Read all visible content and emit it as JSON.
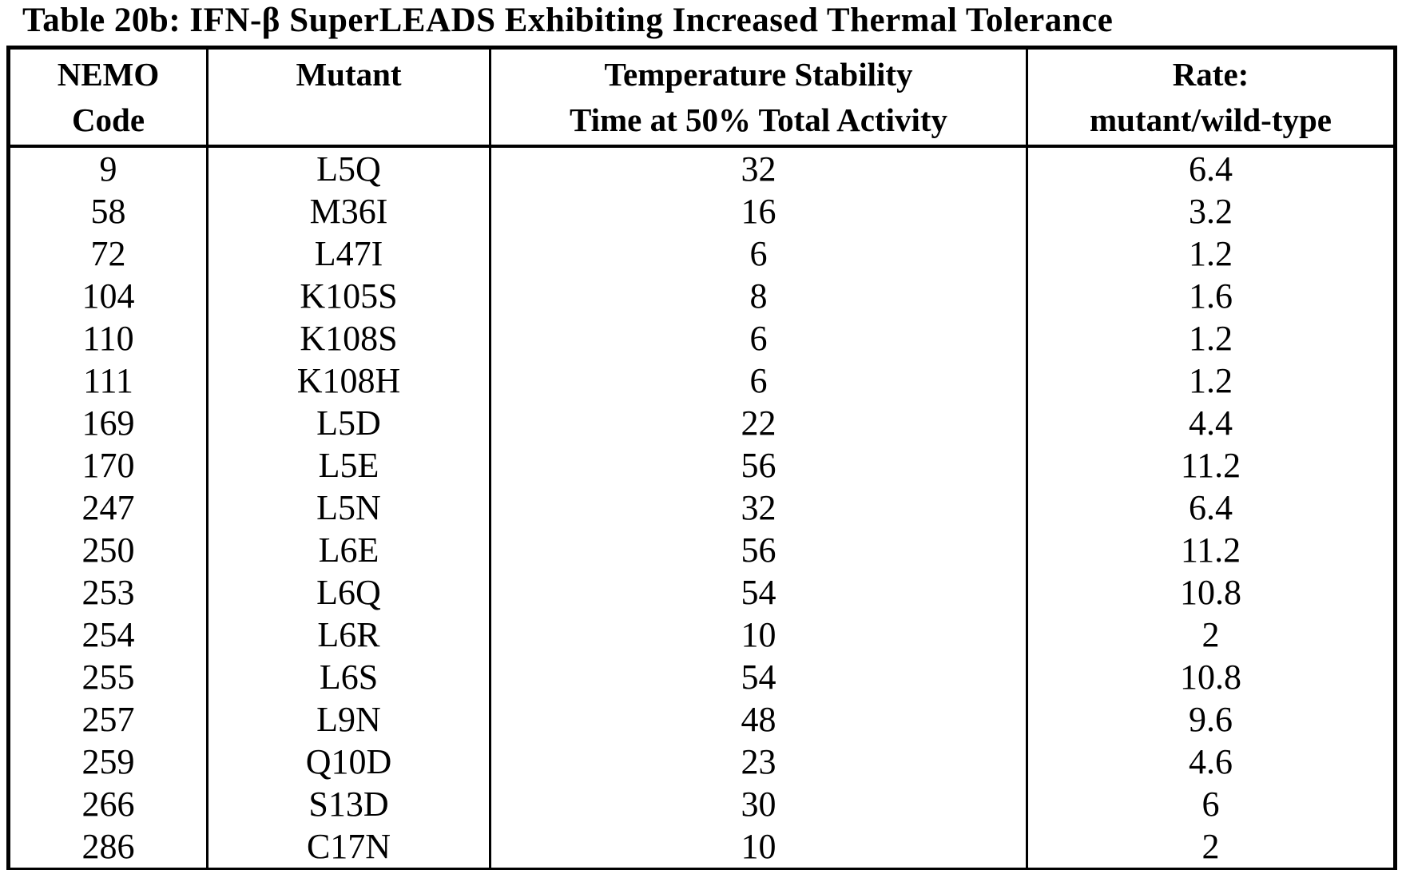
{
  "page": {
    "title": "Table 20b: IFN-β SuperLEADS Exhibiting Increased Thermal Tolerance"
  },
  "table": {
    "headers": [
      "NEMO\nCode",
      "Mutant",
      "Temperature Stability\nTime at 50% Total Activity",
      "Rate:\nmutant/wild-type"
    ],
    "rows": [
      [
        "9",
        "L5Q",
        "32",
        "6.4"
      ],
      [
        "58",
        "M36I",
        "16",
        "3.2"
      ],
      [
        "72",
        "L47I",
        "6",
        "1.2"
      ],
      [
        "104",
        "K105S",
        "8",
        "1.6"
      ],
      [
        "110",
        "K108S",
        "6",
        "1.2"
      ],
      [
        "111",
        "K108H",
        "6",
        "1.2"
      ],
      [
        "169",
        "L5D",
        "22",
        "4.4"
      ],
      [
        "170",
        "L5E",
        "56",
        "11.2"
      ],
      [
        "247",
        "L5N",
        "32",
        "6.4"
      ],
      [
        "250",
        "L6E",
        "56",
        "11.2"
      ],
      [
        "253",
        "L6Q",
        "54",
        "10.8"
      ],
      [
        "254",
        "L6R",
        "10",
        "2"
      ],
      [
        "255",
        "L6S",
        "54",
        "10.8"
      ],
      [
        "257",
        "L9N",
        "48",
        "9.6"
      ],
      [
        "259",
        "Q10D",
        "23",
        "4.6"
      ],
      [
        "266",
        "S13D",
        "30",
        "6"
      ],
      [
        "286",
        "C17N",
        "10",
        "2"
      ]
    ],
    "cell_names": [
      "cell-nemo-code",
      "cell-mutant",
      "cell-stability-time",
      "cell-rate"
    ],
    "colors": {
      "ink": "#000000",
      "paper": "#ffffff"
    }
  }
}
